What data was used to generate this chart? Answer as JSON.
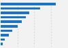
{
  "values": [
    83,
    59,
    43,
    38,
    32,
    25,
    17,
    12,
    6,
    3
  ],
  "bar_color": "#1a73c8",
  "background_color": "#f2f2f2",
  "grid_color": "#cccccc",
  "xlim": [
    0,
    100
  ],
  "bar_height": 0.55
}
